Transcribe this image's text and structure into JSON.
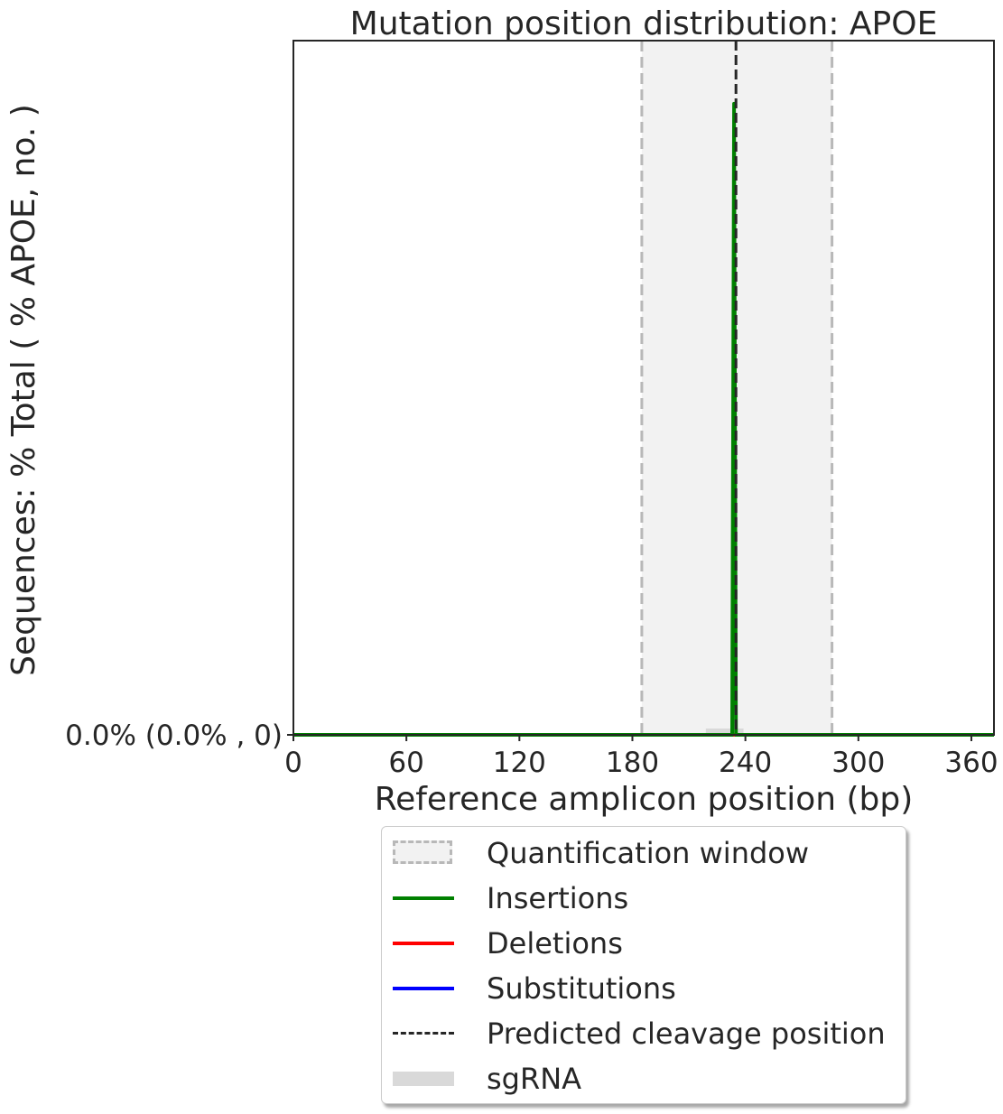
{
  "chart_data": {
    "type": "line",
    "title": "Mutation position distribution: APOE",
    "xlabel": "Reference amplicon position (bp)",
    "ylabel": "Sequences: % Total ( % APOE, no. )",
    "xlim": [
      0,
      372
    ],
    "ylim": [
      0,
      1.1
    ],
    "x_ticks": [
      0,
      60,
      120,
      180,
      240,
      300,
      360
    ],
    "y_ticks": [
      {
        "value": 0,
        "label": "0.0% (0.0% , 0)"
      }
    ],
    "quantification_window": [
      185,
      286
    ],
    "predicted_cleavage_position": 235,
    "sgrna": [
      219,
      239
    ],
    "series": [
      {
        "name": "Insertions",
        "color": "#008000",
        "points": [
          [
            0,
            0
          ],
          [
            233,
            0
          ],
          [
            234,
            1
          ],
          [
            235,
            0
          ],
          [
            372,
            0
          ]
        ]
      },
      {
        "name": "Deletions",
        "color": "#ff0000",
        "points": [
          [
            0,
            0
          ],
          [
            372,
            0
          ]
        ]
      },
      {
        "name": "Substitutions",
        "color": "#0000ff",
        "points": [
          [
            0,
            0
          ],
          [
            372,
            0
          ]
        ]
      }
    ],
    "grid": false,
    "legend_position": "bottom"
  },
  "legend": {
    "items": [
      {
        "label": "Quantification window",
        "kind": "window"
      },
      {
        "label": "Insertions",
        "kind": "line",
        "color": "#008000"
      },
      {
        "label": "Deletions",
        "kind": "line",
        "color": "#ff0000"
      },
      {
        "label": "Substitutions",
        "kind": "line",
        "color": "#0000ff"
      },
      {
        "label": "Predicted cleavage position",
        "kind": "dash",
        "color": "#262626"
      },
      {
        "label": "sgRNA",
        "kind": "sgrna",
        "color": "#d9d9d9"
      }
    ]
  }
}
